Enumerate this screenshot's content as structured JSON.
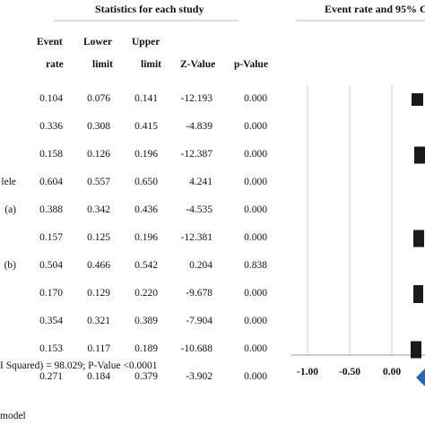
{
  "header": {
    "stats_title": "Statistics for each study",
    "plot_title": "Event rate and 95% C"
  },
  "columns": {
    "event_top": "Event",
    "event_bottom": "rate",
    "lower_top": "Lower",
    "lower_bottom": "limit",
    "upper_top": "Upper",
    "upper_bottom": "limit",
    "z": "Z-Value",
    "p": "p-Value"
  },
  "rows": [
    {
      "label": "",
      "event": "0.104",
      "lower": "0.076",
      "upper": "0.141",
      "z": "-12.193",
      "p": "0.000"
    },
    {
      "label": "",
      "event": "0.336",
      "lower": "0.308",
      "upper": "0.415",
      "z": "-4.839",
      "p": "0.000"
    },
    {
      "label": "",
      "event": "0.158",
      "lower": "0.126",
      "upper": "0.196",
      "z": "-12.387",
      "p": "0.000"
    },
    {
      "label": "lele",
      "event": "0.604",
      "lower": "0.557",
      "upper": "0.650",
      "z": "4.241",
      "p": "0.000"
    },
    {
      "label": "(a)",
      "event": "0.388",
      "lower": "0.342",
      "upper": "0.436",
      "z": "-4.535",
      "p": "0.000"
    },
    {
      "label": "",
      "event": "0.157",
      "lower": "0.125",
      "upper": "0.196",
      "z": "-12.381",
      "p": "0.000"
    },
    {
      "label": "(b)",
      "event": "0.504",
      "lower": "0.466",
      "upper": "0.542",
      "z": "0.204",
      "p": "0.838"
    },
    {
      "label": "",
      "event": "0.170",
      "lower": "0.129",
      "upper": "0.220",
      "z": "-9.678",
      "p": "0.000"
    },
    {
      "label": "",
      "event": "0.354",
      "lower": "0.321",
      "upper": "0.389",
      "z": "-7.904",
      "p": "0.000"
    },
    {
      "label": "",
      "event": "0.153",
      "lower": "0.117",
      "upper": "0.189",
      "z": "-10.688",
      "p": "0.000"
    },
    {
      "label": "",
      "event": "0.271",
      "lower": "0.184",
      "upper": "0.379",
      "z": "-3.902",
      "p": "0.000"
    }
  ],
  "footer": {
    "heterogeneity": "I Squared) = 98.029; P-Value <0.0001",
    "model": "model"
  },
  "chart_data": {
    "type": "forest",
    "title": "Event rate and 95% C",
    "x_ticks": [
      -1.0,
      -0.5,
      0.0
    ],
    "x_tick_labels": [
      "-1.00",
      "-0.50",
      "0.00"
    ],
    "xlim": [
      -1.0,
      0.5
    ],
    "reference_lines": [
      -1.0,
      -0.5,
      0.0
    ],
    "study_marker": "square",
    "summary_marker": "diamond",
    "marker_color": "#1a1a1a",
    "summary_color": "#1f6fb8",
    "line_color": "#cccccc"
  }
}
